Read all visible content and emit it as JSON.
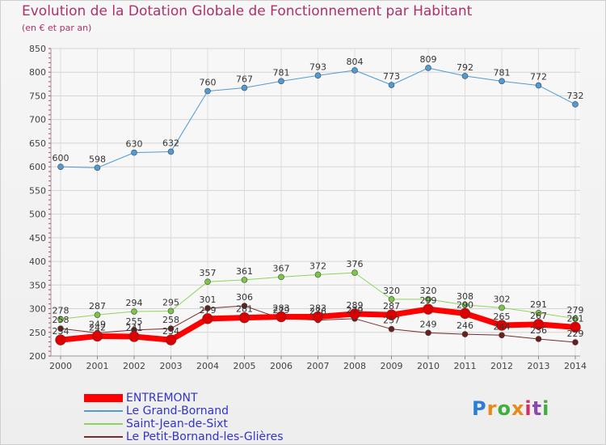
{
  "header": {
    "title": "Evolution de la Dotation Globale de Fonctionnement par Habitant",
    "subtitle": "(en € et par an)"
  },
  "logo": {
    "text": "Proxiti",
    "colors": [
      "#2a7fd4",
      "#e8891c",
      "#3fae3f",
      "#e8891c",
      "#d12f6b",
      "#8a49b0",
      "#3fae3f"
    ]
  },
  "chart_data": {
    "type": "line",
    "categories": [
      "2000",
      "2001",
      "2002",
      "2003",
      "2004",
      "2005",
      "2006",
      "2007",
      "2008",
      "2009",
      "2010",
      "2011",
      "2012",
      "2013",
      "2014"
    ],
    "ylim": [
      200,
      850
    ],
    "yticks": [
      200,
      250,
      300,
      350,
      400,
      450,
      500,
      550,
      600,
      650,
      700,
      750,
      800,
      850
    ],
    "grid": true,
    "legend_position": "bottom-left",
    "series": [
      {
        "name": "Le Grand-Bornand",
        "color": "#4f9bd6",
        "marker": "#4f9bd6",
        "line_width": 1,
        "values": [
          600,
          598,
          630,
          632,
          760,
          767,
          781,
          793,
          804,
          773,
          809,
          792,
          781,
          772,
          732
        ],
        "labels": true
      },
      {
        "name": "Saint-Jean-de-Sixt",
        "color": "#8fd45a",
        "marker": "#7cc646",
        "line_width": 1,
        "values": [
          278,
          287,
          294,
          295,
          357,
          361,
          367,
          372,
          376,
          320,
          320,
          308,
          302,
          291,
          279
        ],
        "labels": true
      },
      {
        "name": "Le Petit-Bornand-les-Glières",
        "color": "#7a2a2a",
        "marker": "#6b1e1e",
        "line_width": 1,
        "values": [
          258,
          249,
          255,
          258,
          301,
          306,
          279,
          276,
          279,
          257,
          249,
          246,
          244,
          236,
          229
        ],
        "labels": true
      },
      {
        "name": "ENTREMONT",
        "color": "#ff0000",
        "marker": "#dd0000",
        "line_width": 7,
        "values": [
          234,
          242,
          241,
          234,
          279,
          281,
          283,
          283,
          289,
          287,
          299,
          290,
          265,
          267,
          261
        ],
        "labels": true
      }
    ],
    "legend_order": [
      "ENTREMONT",
      "Le Grand-Bornand",
      "Saint-Jean-de-Sixt",
      "Le Petit-Bornand-les-Glières"
    ],
    "legend_text_colors": {
      "ENTREMONT": "#3333cc",
      "Le Grand-Bornand": "#3333cc",
      "Saint-Jean-de-Sixt": "#3333cc",
      "Le Petit-Bornand-les-Glières": "#3333cc"
    }
  }
}
